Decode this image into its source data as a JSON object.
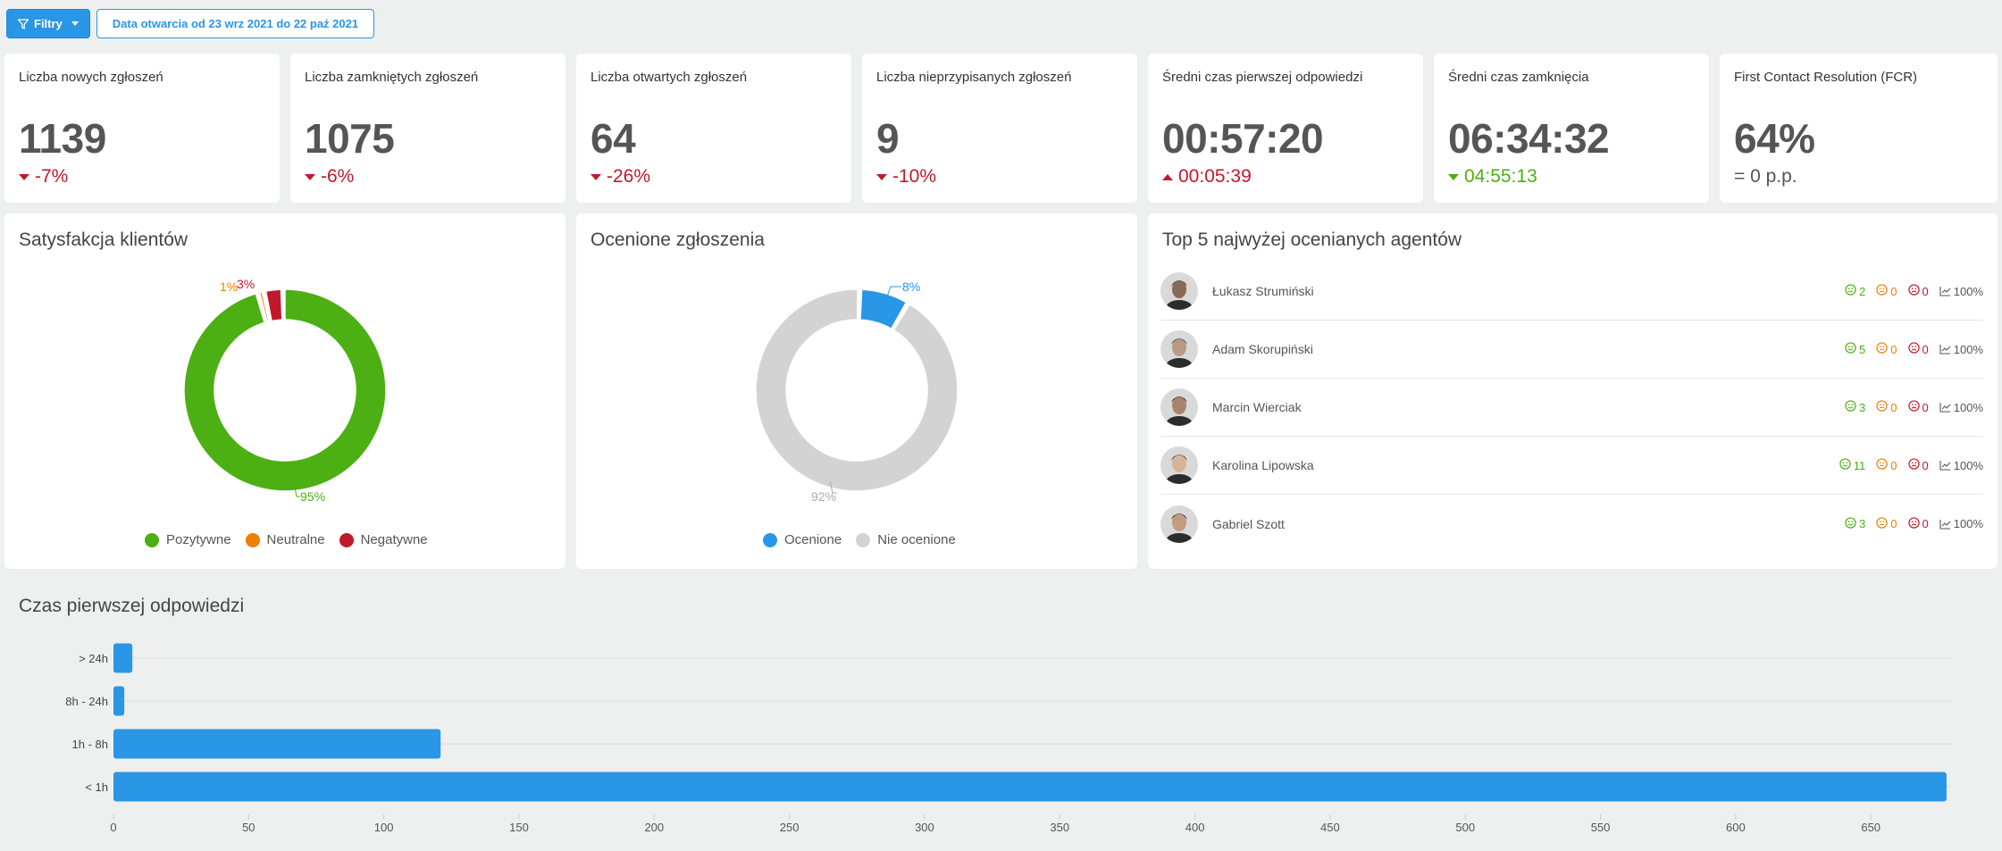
{
  "toolbar": {
    "filter_label": "Filtry",
    "date_label": "Data otwarcia od 23 wrz 2021 do 22 paź 2021"
  },
  "kpis": [
    {
      "title": "Liczba nowych zgłoszeń",
      "value": "1139",
      "delta": "-7%",
      "trend": "down",
      "status": "bad"
    },
    {
      "title": "Liczba zamkniętych zgłoszeń",
      "value": "1075",
      "delta": "-6%",
      "trend": "down",
      "status": "bad"
    },
    {
      "title": "Liczba otwartych zgłoszeń",
      "value": "64",
      "delta": "-26%",
      "trend": "down",
      "status": "bad"
    },
    {
      "title": "Liczba nieprzypisanych zgłoszeń",
      "value": "9",
      "delta": "-10%",
      "trend": "down",
      "status": "bad"
    },
    {
      "title": "Średni czas pierwszej odpowiedzi",
      "value": "00:57:20",
      "delta": "00:05:39",
      "trend": "up",
      "status": "bad"
    },
    {
      "title": "Średni czas zamknięcia",
      "value": "06:34:32",
      "delta": "04:55:13",
      "trend": "down",
      "status": "good"
    },
    {
      "title": "First Contact Resolution (FCR)",
      "value": "64%",
      "delta": "= 0 p.p.",
      "trend": "equal",
      "status": "neutral"
    }
  ],
  "satisfaction": {
    "title": "Satysfakcja klientów",
    "legend": [
      "Pozytywne",
      "Neutralne",
      "Negatywne"
    ],
    "colors": [
      "#4caf13",
      "#ef7d00",
      "#c0192b"
    ],
    "labels": [
      "95%",
      "1%",
      "3%"
    ],
    "values": [
      95,
      1,
      3
    ]
  },
  "rated": {
    "title": "Ocenione zgłoszenia",
    "legend": [
      "Ocenione",
      "Nie ocenione"
    ],
    "colors": [
      "#2a96e6",
      "#d3d3d3"
    ],
    "labels": [
      "8%",
      "92%"
    ],
    "values": [
      8,
      92
    ]
  },
  "agents": {
    "title": "Top 5 najwyżej ocenianych agentów",
    "rows": [
      {
        "name": "Łukasz Strumiński",
        "positive": "2",
        "neutral": "0",
        "negative": "0",
        "score": "100%"
      },
      {
        "name": "Adam Skorupiński",
        "positive": "5",
        "neutral": "0",
        "negative": "0",
        "score": "100%"
      },
      {
        "name": "Marcin Wierciak",
        "positive": "3",
        "neutral": "0",
        "negative": "0",
        "score": "100%"
      },
      {
        "name": "Karolina Lipowska",
        "positive": "11",
        "neutral": "0",
        "negative": "0",
        "score": "100%"
      },
      {
        "name": "Gabriel Szott",
        "positive": "3",
        "neutral": "0",
        "negative": "0",
        "score": "100%"
      }
    ]
  },
  "response_chart": {
    "title": "Czas pierwszej odpowiedzi"
  },
  "chart_data": {
    "type": "bar",
    "orientation": "horizontal",
    "title": "Czas pierwszej odpowiedzi",
    "categories": [
      "> 24h",
      "8h - 24h",
      "1h - 8h",
      "< 1h"
    ],
    "values": [
      7,
      4,
      121,
      678
    ],
    "xlim": [
      0,
      680
    ],
    "xticks": [
      0,
      50,
      100,
      150,
      200,
      250,
      300,
      350,
      400,
      450,
      500,
      550,
      600,
      650
    ],
    "color": "#2a96e6",
    "grid": true
  }
}
